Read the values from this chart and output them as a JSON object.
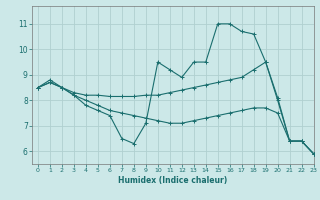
{
  "title": "",
  "xlabel": "Humidex (Indice chaleur)",
  "ylabel": "",
  "background_color": "#cce8e8",
  "grid_color": "#b0d0d0",
  "line_color": "#1a6e6e",
  "xlim": [
    -0.5,
    23
  ],
  "ylim": [
    5.5,
    11.7
  ],
  "xticks": [
    0,
    1,
    2,
    3,
    4,
    5,
    6,
    7,
    8,
    9,
    10,
    11,
    12,
    13,
    14,
    15,
    16,
    17,
    18,
    19,
    20,
    21,
    22,
    23
  ],
  "yticks": [
    6,
    7,
    8,
    9,
    10,
    11
  ],
  "series": [
    {
      "x": [
        0,
        1,
        2,
        3,
        4,
        5,
        6,
        7,
        8,
        9,
        10,
        11,
        12,
        13,
        14,
        15,
        16,
        17,
        18,
        19,
        20,
        21,
        22,
        23
      ],
      "y": [
        8.5,
        8.8,
        8.5,
        8.2,
        7.8,
        7.6,
        7.4,
        6.5,
        6.3,
        7.1,
        9.5,
        9.2,
        8.9,
        9.5,
        9.5,
        11.0,
        11.0,
        10.7,
        10.6,
        9.5,
        8.0,
        6.4,
        6.4,
        5.9
      ]
    },
    {
      "x": [
        0,
        1,
        2,
        3,
        4,
        5,
        6,
        7,
        8,
        9,
        10,
        11,
        12,
        13,
        14,
        15,
        16,
        17,
        18,
        19,
        20,
        21,
        22,
        23
      ],
      "y": [
        8.5,
        8.7,
        8.5,
        8.3,
        8.2,
        8.2,
        8.15,
        8.15,
        8.15,
        8.2,
        8.2,
        8.3,
        8.4,
        8.5,
        8.6,
        8.7,
        8.8,
        8.9,
        9.2,
        9.5,
        8.1,
        6.4,
        6.4,
        5.9
      ]
    },
    {
      "x": [
        0,
        1,
        2,
        3,
        4,
        5,
        6,
        7,
        8,
        9,
        10,
        11,
        12,
        13,
        14,
        15,
        16,
        17,
        18,
        19,
        20,
        21,
        22,
        23
      ],
      "y": [
        8.5,
        8.7,
        8.5,
        8.2,
        8.0,
        7.8,
        7.6,
        7.5,
        7.4,
        7.3,
        7.2,
        7.1,
        7.1,
        7.2,
        7.3,
        7.4,
        7.5,
        7.6,
        7.7,
        7.7,
        7.5,
        6.4,
        6.4,
        5.9
      ]
    }
  ]
}
